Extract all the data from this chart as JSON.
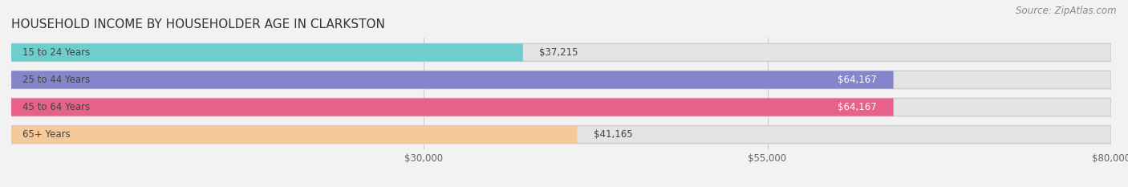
{
  "title": "HOUSEHOLD INCOME BY HOUSEHOLDER AGE IN CLARKSTON",
  "source": "Source: ZipAtlas.com",
  "categories": [
    "15 to 24 Years",
    "25 to 44 Years",
    "45 to 64 Years",
    "65+ Years"
  ],
  "values": [
    37215,
    64167,
    64167,
    41165
  ],
  "bar_colors": [
    "#6dcece",
    "#8585cc",
    "#e8618a",
    "#f5c99a"
  ],
  "bar_labels": [
    "$37,215",
    "$64,167",
    "$64,167",
    "$41,165"
  ],
  "label_inside": [
    false,
    true,
    true,
    false
  ],
  "xlim_min": 0,
  "xlim_max": 80000,
  "xticks": [
    30000,
    55000,
    80000
  ],
  "xtick_labels": [
    "$30,000",
    "$55,000",
    "$80,000"
  ],
  "background_color": "#f2f2f2",
  "bar_bg_color": "#e4e4e4",
  "title_fontsize": 11,
  "source_fontsize": 8.5,
  "bar_label_fontsize": 8.5,
  "cat_label_fontsize": 8.5
}
